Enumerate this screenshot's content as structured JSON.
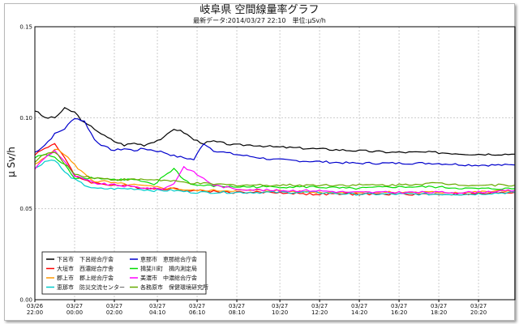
{
  "chart_data": {
    "type": "line",
    "title": "岐阜県 空間線量率グラフ",
    "subtitle": "最新データ:2014/03/27 22:10　単位:μSv/h",
    "ylabel": "μ Sv/h",
    "xlabel": "",
    "ylim": [
      0,
      0.15
    ],
    "yticks": [
      "0.00",
      "0.05",
      "0.10",
      "0.15"
    ],
    "ytick_values": [
      0,
      0.05,
      0.1,
      0.15
    ],
    "xticks": [
      {
        "date": "03/26",
        "time": "22:00",
        "hour": 0
      },
      {
        "date": "03/27",
        "time": "00:00",
        "hour": 2
      },
      {
        "date": "03/27",
        "time": "02:00",
        "hour": 4
      },
      {
        "date": "03/27",
        "time": "04:10",
        "hour": 6.1667
      },
      {
        "date": "03/27",
        "time": "06:10",
        "hour": 8.1667
      },
      {
        "date": "03/27",
        "time": "08:10",
        "hour": 10.1667
      },
      {
        "date": "03/27",
        "time": "10:20",
        "hour": 12.3333
      },
      {
        "date": "03/27",
        "time": "12:20",
        "hour": 14.3333
      },
      {
        "date": "03/27",
        "time": "14:20",
        "hour": 16.3333
      },
      {
        "date": "03/27",
        "time": "16:20",
        "hour": 18.3333
      },
      {
        "date": "03/27",
        "time": "18:20",
        "hour": 20.3333
      },
      {
        "date": "03/27",
        "time": "20:20",
        "hour": 22.3333
      }
    ],
    "xlim": [
      0,
      24.1667
    ],
    "grid": true,
    "legend_position": "bottom-left",
    "series": [
      {
        "name": "下呂市　下呂総合庁舎",
        "color": "#000000",
        "x": [
          0,
          0.5,
          1,
          1.5,
          2,
          2.5,
          3,
          3.5,
          4,
          4.5,
          5,
          5.5,
          6,
          6.5,
          7,
          7.5,
          8,
          8.5,
          9,
          10,
          11,
          12,
          14,
          16,
          18,
          20,
          22,
          24.1667
        ],
        "y": [
          0.104,
          0.1,
          0.1,
          0.105,
          0.103,
          0.097,
          0.094,
          0.09,
          0.087,
          0.085,
          0.086,
          0.085,
          0.087,
          0.089,
          0.094,
          0.092,
          0.088,
          0.086,
          0.087,
          0.085,
          0.085,
          0.084,
          0.083,
          0.082,
          0.081,
          0.081,
          0.08,
          0.08
        ]
      },
      {
        "name": "大垣市　西濃総合庁舎",
        "color": "#ff0000",
        "x": [
          0,
          0.5,
          1,
          1.5,
          2,
          3,
          4,
          5,
          6,
          7,
          8,
          10,
          12,
          14,
          16,
          18,
          20,
          22,
          24.1667
        ],
        "y": [
          0.08,
          0.083,
          0.086,
          0.078,
          0.068,
          0.064,
          0.063,
          0.062,
          0.061,
          0.061,
          0.06,
          0.059,
          0.059,
          0.058,
          0.058,
          0.058,
          0.058,
          0.058,
          0.059
        ]
      },
      {
        "name": "郡上市　郡上総合庁舎",
        "color": "#ff9900",
        "x": [
          0,
          0.5,
          1,
          1.5,
          2,
          2.5,
          3,
          3.5,
          4,
          5,
          6,
          7,
          8,
          10,
          12,
          14,
          16,
          18,
          20,
          22,
          24.1667
        ],
        "y": [
          0.074,
          0.078,
          0.083,
          0.08,
          0.074,
          0.069,
          0.065,
          0.065,
          0.064,
          0.063,
          0.062,
          0.061,
          0.06,
          0.06,
          0.06,
          0.059,
          0.059,
          0.059,
          0.059,
          0.059,
          0.06
        ]
      },
      {
        "name": "恵那市　防災交流センター",
        "color": "#00cccc",
        "x": [
          0,
          0.5,
          1,
          1.5,
          2,
          2.5,
          3,
          4,
          5,
          6,
          7,
          8,
          10,
          12,
          14,
          16,
          18,
          20,
          22,
          24.1667
        ],
        "y": [
          0.072,
          0.076,
          0.077,
          0.07,
          0.066,
          0.063,
          0.061,
          0.061,
          0.061,
          0.06,
          0.06,
          0.059,
          0.059,
          0.059,
          0.059,
          0.058,
          0.058,
          0.058,
          0.058,
          0.059
        ]
      },
      {
        "name": "恵那市　恵那総合庁舎",
        "color": "#0000cc",
        "x": [
          0,
          0.5,
          1,
          1.5,
          2,
          2.5,
          3,
          3.5,
          4,
          4.5,
          5,
          5.5,
          6,
          6.5,
          7,
          7.5,
          8,
          8.5,
          9,
          10,
          12,
          14,
          16,
          18,
          20,
          22,
          24.1667
        ],
        "y": [
          0.081,
          0.085,
          0.091,
          0.094,
          0.1,
          0.098,
          0.088,
          0.084,
          0.082,
          0.083,
          0.082,
          0.083,
          0.082,
          0.081,
          0.079,
          0.078,
          0.077,
          0.086,
          0.082,
          0.08,
          0.077,
          0.076,
          0.075,
          0.075,
          0.075,
          0.074,
          0.074
        ]
      },
      {
        "name": "揖斐川町　揖内測定局",
        "color": "#00dd00",
        "x": [
          0,
          0.5,
          1,
          1.5,
          2,
          3,
          4,
          5,
          6,
          6.5,
          7,
          7.5,
          8,
          10,
          12,
          14,
          16,
          18,
          20,
          22,
          24.1667
        ],
        "y": [
          0.078,
          0.08,
          0.078,
          0.074,
          0.067,
          0.067,
          0.066,
          0.066,
          0.063,
          0.068,
          0.072,
          0.066,
          0.063,
          0.062,
          0.062,
          0.062,
          0.061,
          0.062,
          0.062,
          0.061,
          0.061
        ]
      },
      {
        "name": "美濃市　中濃総合庁舎",
        "color": "#ff00ff",
        "x": [
          0,
          0.5,
          1,
          1.5,
          2,
          3,
          4,
          5,
          6,
          6.5,
          7,
          7.5,
          8,
          9,
          10,
          12,
          14,
          16,
          18,
          20,
          22,
          24.1667
        ],
        "y": [
          0.072,
          0.078,
          0.082,
          0.076,
          0.068,
          0.064,
          0.063,
          0.062,
          0.061,
          0.061,
          0.064,
          0.073,
          0.07,
          0.063,
          0.061,
          0.06,
          0.06,
          0.059,
          0.059,
          0.059,
          0.059,
          0.06
        ]
      },
      {
        "name": "各務原市　保健環境研究所",
        "color": "#66aa00",
        "x": [
          0,
          0.5,
          1,
          1.5,
          2,
          3,
          4,
          5,
          6,
          7,
          8,
          10,
          12,
          14,
          16,
          18,
          20,
          22,
          24.1667
        ],
        "y": [
          0.076,
          0.08,
          0.081,
          0.075,
          0.069,
          0.067,
          0.066,
          0.066,
          0.066,
          0.065,
          0.064,
          0.063,
          0.063,
          0.063,
          0.063,
          0.063,
          0.064,
          0.063,
          0.063
        ]
      }
    ]
  }
}
